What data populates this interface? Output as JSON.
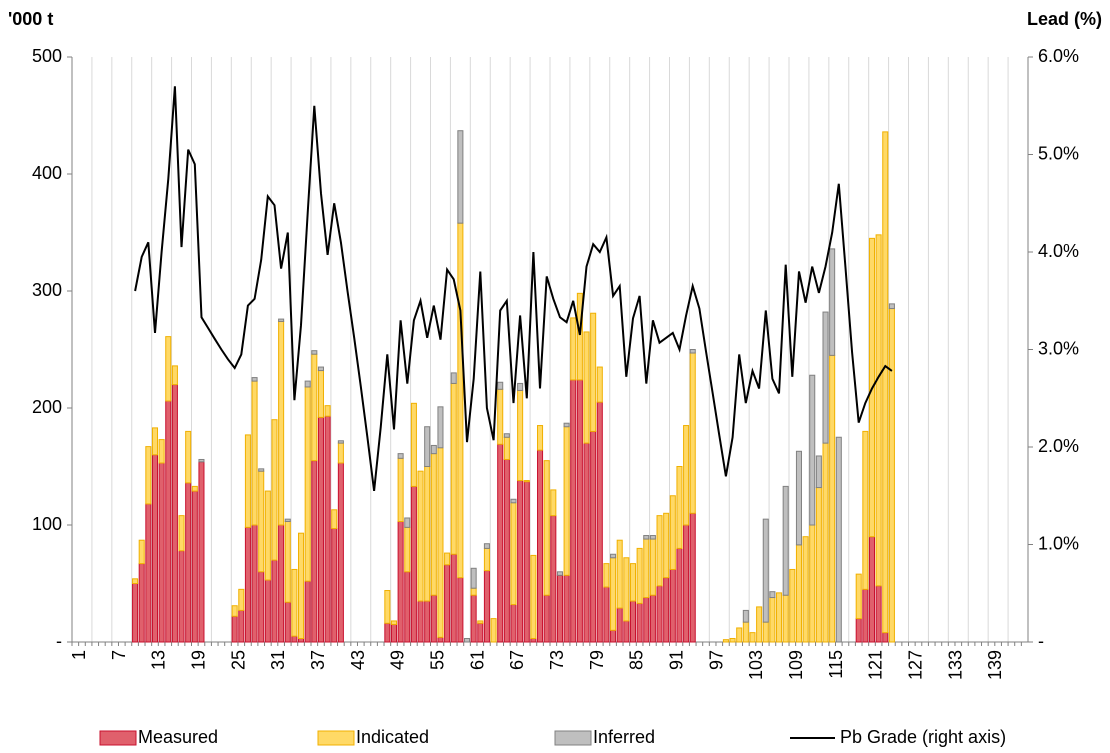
{
  "chart_data": {
    "type": "bar_line",
    "y_label": "'000 t",
    "y2_label": "Lead (%)",
    "categories": [
      "1",
      null,
      null,
      null,
      null,
      null,
      "7",
      null,
      null,
      null,
      null,
      null,
      "13",
      null,
      null,
      null,
      null,
      null,
      "19",
      null,
      null,
      null,
      null,
      null,
      "25",
      null,
      null,
      null,
      null,
      null,
      "31",
      null,
      null,
      null,
      null,
      null,
      "37",
      null,
      null,
      null,
      null,
      null,
      "43",
      null,
      null,
      null,
      null,
      null,
      "49",
      null,
      null,
      null,
      null,
      null,
      "55",
      null,
      null,
      null,
      null,
      null,
      "61",
      null,
      null,
      null,
      null,
      null,
      "67",
      null,
      null,
      null,
      null,
      null,
      "73",
      null,
      null,
      null,
      null,
      null,
      "79",
      null,
      null,
      null,
      null,
      null,
      "85",
      null,
      null,
      null,
      null,
      null,
      "91",
      null,
      null,
      null,
      null,
      null,
      "97",
      null,
      null,
      null,
      null,
      null,
      "103",
      null,
      null,
      null,
      null,
      null,
      "109",
      null,
      null,
      null,
      null,
      null,
      "115",
      null,
      null,
      null,
      null,
      null,
      "121",
      null,
      null,
      null,
      null,
      null,
      "127",
      null,
      null,
      null,
      null,
      null,
      "133",
      null,
      null,
      null,
      null,
      null,
      "139",
      null,
      null,
      null,
      null,
      null
    ],
    "series": [
      {
        "name": "Measured",
        "color": "#e0606c",
        "edgecolor": "#c8102e",
        "stack": true,
        "values": [
          null,
          null,
          null,
          null,
          null,
          null,
          null,
          null,
          null,
          50,
          67,
          118,
          160,
          153,
          206,
          220,
          78,
          136,
          129,
          154,
          null,
          null,
          null,
          null,
          22,
          27,
          98,
          100,
          60,
          53,
          70,
          100,
          34,
          5,
          3,
          52,
          155,
          192,
          193,
          97,
          153,
          null,
          null,
          null,
          null,
          null,
          null,
          16,
          15,
          103,
          60,
          133,
          35,
          35,
          40,
          4,
          66,
          75,
          55,
          0,
          40,
          16,
          61,
          0,
          169,
          156,
          32,
          138,
          137,
          3,
          164,
          40,
          108,
          57,
          57,
          224,
          224,
          170,
          180,
          205,
          47,
          10,
          29,
          18,
          35,
          33,
          38,
          40,
          48,
          55,
          62,
          80,
          100,
          110,
          null,
          null,
          null,
          null,
          0,
          0,
          0,
          0,
          0,
          0,
          0,
          0,
          0,
          0,
          0,
          0,
          0,
          0,
          0,
          0,
          0,
          0,
          null,
          null,
          20,
          45,
          90,
          48,
          8,
          0,
          null,
          null,
          null,
          null,
          null,
          null,
          null,
          null,
          null,
          null,
          null,
          null,
          null,
          null,
          null,
          null,
          null,
          null,
          null,
          null
        ]
      },
      {
        "name": "Indicated",
        "color": "#ffd966",
        "edgecolor": "#f0b000",
        "stack": true,
        "values": [
          null,
          null,
          null,
          null,
          null,
          null,
          null,
          null,
          null,
          4,
          20,
          49,
          23,
          20,
          55,
          16,
          30,
          44,
          4,
          0,
          null,
          null,
          null,
          null,
          9,
          18,
          79,
          123,
          86,
          76,
          120,
          174,
          69,
          57,
          90,
          166,
          91,
          40,
          9,
          16,
          17,
          null,
          null,
          null,
          null,
          null,
          null,
          28,
          3,
          54,
          38,
          71,
          111,
          115,
          121,
          162,
          10,
          146,
          303,
          0,
          6,
          2,
          19,
          20,
          47,
          19,
          87,
          77,
          1,
          71,
          21,
          115,
          22,
          0,
          127,
          53,
          74,
          95,
          101,
          30,
          20,
          62,
          58,
          54,
          32,
          47,
          50,
          48,
          60,
          55,
          63,
          70,
          85,
          137,
          null,
          null,
          null,
          null,
          2,
          3,
          12,
          17,
          8,
          30,
          17,
          38,
          42,
          40,
          62,
          83,
          90,
          100,
          132,
          170,
          245,
          0,
          null,
          null,
          38,
          135,
          255,
          300,
          428,
          285,
          null,
          null,
          null,
          null,
          null,
          null,
          null,
          null,
          null,
          null,
          null,
          null,
          null,
          null,
          null,
          null,
          null,
          null,
          null,
          null
        ]
      },
      {
        "name": "Inferred",
        "color": "#bfbfbf",
        "edgecolor": "#808080",
        "stack": true,
        "values": [
          null,
          null,
          null,
          null,
          null,
          null,
          null,
          null,
          null,
          0,
          0,
          0,
          0,
          0,
          0,
          0,
          0,
          0,
          0,
          2,
          null,
          null,
          null,
          null,
          0,
          0,
          0,
          3,
          2,
          0,
          0,
          2,
          2,
          0,
          0,
          5,
          3,
          3,
          0,
          0,
          2,
          null,
          null,
          null,
          null,
          null,
          null,
          0,
          0,
          4,
          8,
          0,
          0,
          34,
          7,
          35,
          0,
          9,
          79,
          3,
          17,
          0,
          4,
          0,
          6,
          3,
          3,
          6,
          0,
          0,
          0,
          0,
          0,
          3,
          3,
          0,
          0,
          0,
          0,
          0,
          0,
          3,
          0,
          0,
          0,
          0,
          3,
          3,
          0,
          0,
          0,
          0,
          0,
          3,
          null,
          null,
          null,
          null,
          0,
          0,
          0,
          10,
          0,
          0,
          88,
          5,
          0,
          93,
          0,
          80,
          0,
          128,
          27,
          112,
          91,
          175,
          null,
          null,
          0,
          0,
          0,
          0,
          0,
          4,
          null,
          null,
          null,
          null,
          null,
          null,
          null,
          null,
          null,
          null,
          null,
          null,
          null,
          null,
          null,
          null,
          null,
          null,
          null,
          null
        ]
      },
      {
        "name": "Pb Grade (right axis)",
        "color": "#000000",
        "axis": "y2",
        "values": [
          null,
          null,
          null,
          null,
          null,
          null,
          null,
          null,
          null,
          3.6,
          3.95,
          4.1,
          3.17,
          4.0,
          4.75,
          5.7,
          4.05,
          5.05,
          4.9,
          3.33,
          3.22,
          3.11,
          3.0,
          2.9,
          2.81,
          2.95,
          3.45,
          3.52,
          3.92,
          4.57,
          4.48,
          3.83,
          4.2,
          2.48,
          3.25,
          4.4,
          5.5,
          4.6,
          3.97,
          4.5,
          4.1,
          3.6,
          3.12,
          2.62,
          2.1,
          1.55,
          2.2,
          2.95,
          2.18,
          3.3,
          2.65,
          3.3,
          3.5,
          3.12,
          3.45,
          3.1,
          3.82,
          3.72,
          3.4,
          2.05,
          2.7,
          3.8,
          2.4,
          2.07,
          3.4,
          3.5,
          2.45,
          3.35,
          2.5,
          4.0,
          2.6,
          3.75,
          3.52,
          3.33,
          3.28,
          3.5,
          3.15,
          3.85,
          4.08,
          4.0,
          4.15,
          3.55,
          3.65,
          2.72,
          3.32,
          3.55,
          2.65,
          3.3,
          3.07,
          3.12,
          3.17,
          3.0,
          3.35,
          3.65,
          3.42,
          2.98,
          2.55,
          2.12,
          1.7,
          2.1,
          2.95,
          2.45,
          2.78,
          2.6,
          3.4,
          2.7,
          2.55,
          3.87,
          2.72,
          3.8,
          3.48,
          3.85,
          3.58,
          3.85,
          4.2,
          4.7,
          3.85,
          2.97,
          2.25,
          2.45,
          2.6,
          2.72,
          2.83,
          2.78,
          null,
          null,
          null,
          null,
          null,
          null,
          null,
          null,
          null,
          null,
          null,
          null,
          null,
          null,
          null,
          null,
          null,
          null,
          null,
          null
        ]
      }
    ],
    "ylim": [
      0,
      500
    ],
    "yticks": [
      {
        "value": 0,
        "label": "-"
      },
      100,
      200,
      300,
      400,
      500
    ],
    "y2lim": [
      0,
      6
    ],
    "y2ticks": [
      {
        "value": 0,
        "label": "-"
      },
      {
        "value": 1,
        "label": "1.0%"
      },
      {
        "value": 2,
        "label": "2.0%"
      },
      {
        "value": 3,
        "label": "3.0%"
      },
      {
        "value": 4,
        "label": "4.0%"
      },
      {
        "value": 5,
        "label": "5.0%"
      },
      {
        "value": 6,
        "label": "6.0%"
      }
    ],
    "grid": "x",
    "legend": "bottom"
  }
}
